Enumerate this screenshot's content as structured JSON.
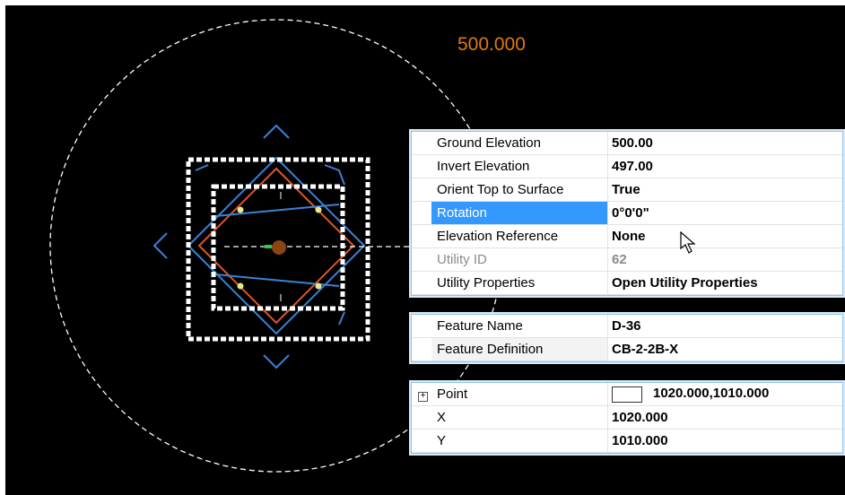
{
  "drawing": {
    "elevation_label": "500.000",
    "colors": {
      "background": "#000000",
      "elevation_text": "#e07a10",
      "symbol_blue": "#3b82d6",
      "symbol_orange": "#e0552a",
      "selection_white": "#ffffff",
      "node_dot": "#e6e88a",
      "center_dot": "#8b4513",
      "center_tick": "#2ecc40"
    }
  },
  "properties_panel": {
    "rows": [
      {
        "label": "Ground Elevation",
        "value": "500.00"
      },
      {
        "label": "Invert Elevation",
        "value": "497.00"
      },
      {
        "label": "Orient Top to Surface",
        "value": "True"
      },
      {
        "label": "Rotation",
        "value": "0°0'0\""
      },
      {
        "label": "Elevation Reference",
        "value": "None"
      },
      {
        "label": "Utility ID",
        "value": "62"
      },
      {
        "label": "Utility Properties",
        "value": "Open Utility Properties"
      }
    ],
    "selected_row": "Rotation",
    "disabled_row": "Utility ID"
  },
  "feature_panel": {
    "rows": [
      {
        "label": "Feature Name",
        "value": "D-36"
      },
      {
        "label": "Feature Definition",
        "value": "CB-2-2B-X"
      }
    ]
  },
  "point_panel": {
    "point": {
      "label": "Point",
      "value": "1020.000,1010.000",
      "expand_icon": "plus-box-icon"
    },
    "rows": [
      {
        "label": "X",
        "value": "1020.000"
      },
      {
        "label": "Y",
        "value": "1010.000"
      }
    ]
  },
  "cursor": {
    "icon": "arrow-pointer-icon"
  }
}
